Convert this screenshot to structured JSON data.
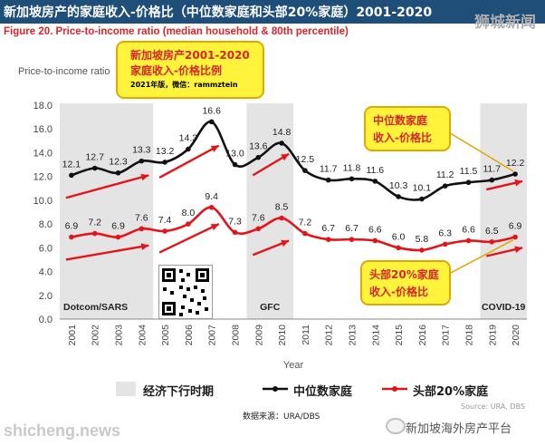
{
  "header": {
    "banner_title": "新加坡房产的家庭收入-价格比（中位数家庭和头部20%家庭）2001-2020",
    "brand_top": "狮城新闻",
    "figure_title": "Figure 20. Price-to-income ratio (median household & 80th percentile)"
  },
  "annotations": {
    "top_box_line1": "新加坡房产2001-2020",
    "top_box_line2": "家庭收入-价格比例",
    "top_box_line3": "2021年版，微信：rammztein",
    "median_box_line1": "中位数家庭",
    "median_box_line2": "收入-价格比",
    "top20_box_line1": "头部20%家庭",
    "top20_box_line2": "收入-价格比"
  },
  "legend": {
    "recession": "经济下行时期",
    "median": "中位数家庭",
    "top20": "头部20%家庭"
  },
  "footer": {
    "source": "Source: URA, DBS",
    "data_note": "数据来源：URA/DBS",
    "brand_bottom": "shicheng.news",
    "brand_wechat": "新加坡海外房产平台"
  },
  "colors": {
    "median": "#111111",
    "top20": "#e3151a",
    "recession_band": "#e4e4e4",
    "trend_arrow": "#e3151a",
    "banner": "#1f4e79"
  },
  "chart_data": {
    "type": "line",
    "title": "Price-to-income ratio (median household & 80th percentile)",
    "xlabel": "Year",
    "ylabel": "Price-to-income ratio",
    "ylim": [
      0.0,
      18.0
    ],
    "yticks": [
      "0.0",
      "2.0",
      "4.0",
      "6.0",
      "8.0",
      "10.0",
      "12.0",
      "14.0",
      "16.0",
      "18.0"
    ],
    "x": [
      2001,
      2002,
      2003,
      2004,
      2005,
      2006,
      2007,
      2008,
      2009,
      2010,
      2011,
      2012,
      2013,
      2014,
      2015,
      2016,
      2017,
      2018,
      2019,
      2020
    ],
    "series": [
      {
        "name": "中位数家庭",
        "values": [
          12.1,
          12.7,
          12.3,
          13.3,
          13.2,
          14.3,
          16.6,
          13.0,
          13.6,
          14.8,
          12.5,
          11.7,
          11.8,
          11.6,
          10.3,
          10.1,
          11.2,
          11.5,
          11.7,
          12.2
        ]
      },
      {
        "name": "头部20%家庭",
        "values": [
          6.9,
          7.2,
          6.9,
          7.6,
          7.4,
          8.0,
          9.4,
          7.3,
          7.6,
          8.5,
          7.2,
          6.7,
          6.7,
          6.6,
          6.0,
          5.8,
          6.3,
          6.6,
          6.5,
          6.9
        ]
      }
    ],
    "shaded_periods": [
      {
        "label": "Dotcom/SARS",
        "start": 2001,
        "end": 2004
      },
      {
        "label": "GFC",
        "start": 2009,
        "end": 2010
      },
      {
        "label": "COVID-19",
        "start": 2019,
        "end": 2020
      }
    ],
    "grid": true,
    "legend_position": "bottom"
  }
}
